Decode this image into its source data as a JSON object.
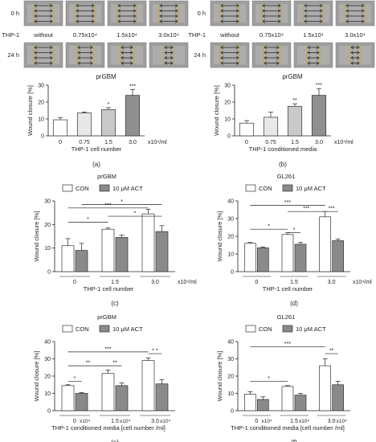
{
  "microscopy": {
    "left": {
      "row_labels": [
        "0 h",
        "24 h"
      ],
      "cell_line_label": "THP-1",
      "columns": [
        "without",
        "0.75x10⁴",
        "1.5x10⁴",
        "3.0x10⁴"
      ],
      "caption": "prGBM"
    },
    "right": {
      "row_labels": [
        "0 h",
        "24 h"
      ],
      "cell_line_label": "THP-1",
      "columns": [
        "without",
        "0.75x10⁴",
        "1.5x10⁴",
        "3.0x10⁴"
      ],
      "caption": "prGBM"
    }
  },
  "chart_data": [
    {
      "id": "a",
      "type": "bar",
      "panel_label": "(a)",
      "title": "",
      "ylabel": "Wound closure [%]",
      "xlabel": "THP-1 cell number",
      "unit": "x10⁴/ml",
      "categories": [
        "0",
        "0.75",
        "1.5",
        "3.0"
      ],
      "ylim": [
        0,
        30
      ],
      "yticks": [
        0,
        10,
        20,
        30
      ],
      "series": [
        {
          "values": [
            9.5,
            13.5,
            15.5,
            24
          ],
          "errors": [
            1.2,
            0.6,
            1.2,
            3.5
          ],
          "colors": [
            "#ffffff",
            "#e8e8e8",
            "#c9c9c9",
            "#8f8f8f"
          ],
          "labels": [
            "",
            "",
            "*",
            "***"
          ]
        }
      ]
    },
    {
      "id": "b",
      "type": "bar",
      "panel_label": "(b)",
      "title": "",
      "ylabel": "Wound closure [%]",
      "xlabel": "THP-1 conditioned media",
      "unit": "x10⁴/ml",
      "categories": [
        "0",
        "0.75",
        "1.5",
        "3.0"
      ],
      "ylim": [
        0,
        30
      ],
      "yticks": [
        0,
        10,
        20,
        30
      ],
      "series": [
        {
          "values": [
            7.5,
            11,
            17.5,
            24
          ],
          "errors": [
            1.5,
            3,
            1.5,
            4
          ],
          "colors": [
            "#ffffff",
            "#e8e8e8",
            "#c9c9c9",
            "#8f8f8f"
          ],
          "labels": [
            "",
            "",
            "**",
            "***"
          ]
        }
      ]
    },
    {
      "id": "c",
      "type": "bar",
      "panel_label": "(c)",
      "title": "prGBM",
      "ylabel": "Wound closure [%]",
      "xlabel": "THP-1 cell number",
      "unit": "x10⁴/ml",
      "categories": [
        "0",
        "1.5",
        "3.0"
      ],
      "ylim": [
        0,
        30
      ],
      "yticks": [
        0,
        10,
        20,
        30
      ],
      "legend": [
        "CON",
        "10 μM ACT"
      ],
      "series": [
        {
          "name": "CON",
          "values": [
            11,
            18,
            24.5
          ],
          "errors": [
            3,
            0.5,
            2
          ]
        },
        {
          "name": "10 μM ACT",
          "values": [
            9,
            14.5,
            17
          ],
          "errors": [
            3,
            1,
            2.5
          ]
        }
      ],
      "brackets": [
        {
          "from": [
            0,
            0
          ],
          "to": [
            1,
            0
          ],
          "y": 21,
          "label": "*"
        },
        {
          "from": [
            1,
            0
          ],
          "to": [
            2,
            1
          ],
          "y": 23.5,
          "label": "*"
        },
        {
          "from": [
            0,
            0
          ],
          "to": [
            2,
            0
          ],
          "y": 27,
          "label": "***"
        },
        {
          "from": [
            0,
            1
          ],
          "to": [
            2,
            1
          ],
          "y": 28.5,
          "label": "*"
        }
      ]
    },
    {
      "id": "d",
      "type": "bar",
      "panel_label": "(d)",
      "title": "GL261",
      "ylabel": "Wound closure [%]",
      "xlabel": "THP-1 cell number",
      "unit": "x10⁴/ml",
      "categories": [
        "0",
        "1.5",
        "3.0"
      ],
      "ylim": [
        0,
        40
      ],
      "yticks": [
        0,
        10,
        20,
        30,
        40
      ],
      "legend": [
        "CON",
        "10 μM ACT"
      ],
      "series": [
        {
          "name": "CON",
          "values": [
            16,
            21,
            31
          ],
          "errors": [
            0.5,
            1,
            3
          ]
        },
        {
          "name": "10 μM ACT",
          "values": [
            13.5,
            15.5,
            17.5
          ],
          "errors": [
            0.5,
            1,
            1
          ]
        }
      ],
      "brackets": [
        {
          "from": [
            0,
            0
          ],
          "to": [
            1,
            0
          ],
          "y": 24,
          "label": "*"
        },
        {
          "from": [
            1,
            0
          ],
          "to": [
            1,
            1
          ],
          "y": 22,
          "label": "*"
        },
        {
          "from": [
            1,
            0
          ],
          "to": [
            2,
            0
          ],
          "y": 34,
          "label": "***"
        },
        {
          "from": [
            2,
            0
          ],
          "to": [
            2,
            1
          ],
          "y": 34,
          "label": "***"
        },
        {
          "from": [
            0,
            0
          ],
          "to": [
            2,
            0
          ],
          "y": 37.5,
          "label": "***"
        }
      ]
    },
    {
      "id": "e",
      "type": "bar",
      "panel_label": "(e)",
      "title": "prGBM",
      "ylabel": "Wound closure [%]",
      "xlabel": "THP-1 conditioned media [cell number /ml]",
      "unit": "",
      "categories": [
        "0",
        "1.5",
        "3.0"
      ],
      "category_suffix": "x10⁴",
      "ylim": [
        0,
        40
      ],
      "yticks": [
        0,
        10,
        20,
        30,
        40
      ],
      "legend": [
        "CON",
        "10 μM ACT"
      ],
      "series": [
        {
          "name": "CON",
          "values": [
            14.5,
            21.5,
            29
          ],
          "errors": [
            0.5,
            2,
            1.5
          ]
        },
        {
          "name": "10 μM ACT",
          "values": [
            10,
            14.5,
            15.5
          ],
          "errors": [
            0.5,
            1.5,
            2.5
          ]
        }
      ],
      "brackets": [
        {
          "from": [
            0,
            0
          ],
          "to": [
            0,
            1
          ],
          "y": 17,
          "label": "*"
        },
        {
          "from": [
            0,
            0
          ],
          "to": [
            1,
            0
          ],
          "y": 26,
          "label": "**"
        },
        {
          "from": [
            1,
            0
          ],
          "to": [
            1,
            1
          ],
          "y": 26,
          "label": "**"
        },
        {
          "from": [
            2,
            0
          ],
          "to": [
            2,
            1
          ],
          "y": 33,
          "label": "* *"
        },
        {
          "from": [
            0,
            0
          ],
          "to": [
            2,
            0
          ],
          "y": 34,
          "label": "***"
        }
      ]
    },
    {
      "id": "f",
      "type": "bar",
      "panel_label": "(f)",
      "title": "GL261",
      "ylabel": "Wound closure [%]",
      "xlabel": "THP-1 conditioned media [cell number /ml]",
      "unit": "",
      "categories": [
        "0",
        "1.5",
        "3.0"
      ],
      "category_suffix": "x10⁴",
      "ylim": [
        0,
        40
      ],
      "yticks": [
        0,
        10,
        20,
        30,
        40
      ],
      "legend": [
        "CON",
        "10 μM ACT"
      ],
      "series": [
        {
          "name": "CON",
          "values": [
            9.5,
            14,
            26
          ],
          "errors": [
            1.5,
            0.5,
            4
          ]
        },
        {
          "name": "10 μM ACT",
          "values": [
            6.5,
            9,
            15
          ],
          "errors": [
            1.5,
            1,
            2
          ]
        }
      ],
      "brackets": [
        {
          "from": [
            0,
            0
          ],
          "to": [
            1,
            0
          ],
          "y": 17,
          "label": "*"
        },
        {
          "from": [
            2,
            0
          ],
          "to": [
            2,
            1
          ],
          "y": 33,
          "label": "**"
        },
        {
          "from": [
            0,
            0
          ],
          "to": [
            2,
            0
          ],
          "y": 37,
          "label": "***"
        }
      ]
    }
  ],
  "colors": {
    "con": "#ffffff",
    "act": "#8a8a8a",
    "axis": "#222222"
  }
}
